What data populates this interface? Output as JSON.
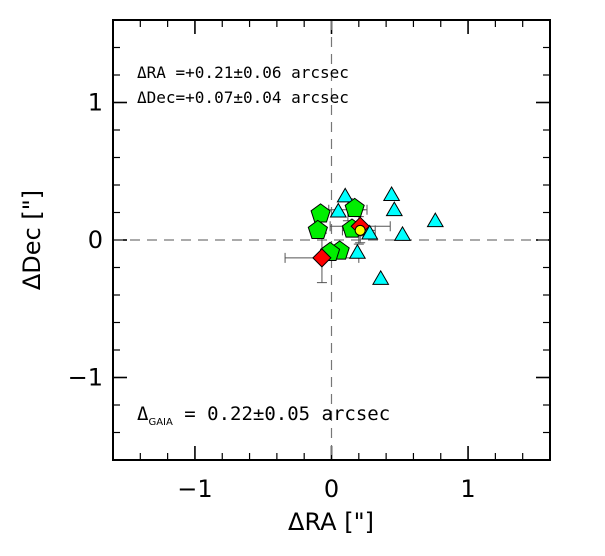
{
  "chart_data": {
    "type": "scatter",
    "xlabel": "ΔRA [\"]",
    "ylabel": "ΔDec [\"]",
    "xlim": [
      -1.6,
      1.6
    ],
    "ylim": [
      -1.6,
      1.6
    ],
    "x_ticks": [
      -1,
      0,
      1
    ],
    "x_tick_labels": [
      "−1",
      "0",
      "1"
    ],
    "y_ticks": [
      -1,
      0,
      1
    ],
    "y_tick_labels": [
      "−1",
      "0",
      "1"
    ],
    "grid": false,
    "reference_lines": {
      "x": 0,
      "y": 0,
      "style": "dashed"
    },
    "annotations": {
      "dra": "ΔRA =+0.21±0.06 arcsec",
      "ddec": "ΔDec=+0.07±0.04 arcsec",
      "gaia_prefix": "Δ",
      "gaia_sub": "GAIA",
      "gaia_value": " = 0.22±0.05 arcsec"
    },
    "series": [
      {
        "marker": "triangle",
        "color": "#00ffff",
        "points": [
          {
            "x": 0.1,
            "y": 0.31
          },
          {
            "x": 0.44,
            "y": 0.32
          },
          {
            "x": 0.05,
            "y": 0.2
          },
          {
            "x": 0.46,
            "y": 0.21
          },
          {
            "x": 0.76,
            "y": 0.13
          },
          {
            "x": 0.2,
            "y": 0.07
          },
          {
            "x": 0.28,
            "y": 0.04
          },
          {
            "x": 0.52,
            "y": 0.03
          },
          {
            "x": 0.19,
            "y": -0.1
          },
          {
            "x": 0.36,
            "y": -0.29
          }
        ]
      },
      {
        "marker": "pentagon",
        "color": "#00ee00",
        "points": [
          {
            "x": -0.08,
            "y": 0.19
          },
          {
            "x": 0.17,
            "y": 0.23
          },
          {
            "x": -0.1,
            "y": 0.07
          },
          {
            "x": 0.15,
            "y": 0.08
          },
          {
            "x": 0.06,
            "y": -0.08
          },
          {
            "x": -0.01,
            "y": -0.09
          }
        ],
        "error_bars": [
          {
            "x": 0.12,
            "y": 0.22,
            "xerr": 0.14,
            "yerr": 0.08
          },
          {
            "x": 0.2,
            "y": 0.07,
            "xerr": 0.12,
            "yerr": 0.1
          }
        ]
      },
      {
        "marker": "diamond",
        "color": "#ff0000",
        "points": [
          {
            "x": -0.07,
            "y": -0.13
          },
          {
            "x": 0.21,
            "y": 0.1
          }
        ],
        "error_bars": [
          {
            "x": -0.07,
            "y": -0.13,
            "xerr": 0.27,
            "yerr": 0.18
          },
          {
            "x": 0.21,
            "y": 0.1,
            "xerr": 0.22,
            "yerr": 0.12
          }
        ]
      },
      {
        "marker": "circle",
        "color": "#ffff00",
        "points": [
          {
            "x": 0.21,
            "y": 0.07
          }
        ],
        "error_bars": [
          {
            "x": 0.21,
            "y": 0.07,
            "xerr": 0.06,
            "yerr": 0.04
          }
        ]
      }
    ]
  }
}
